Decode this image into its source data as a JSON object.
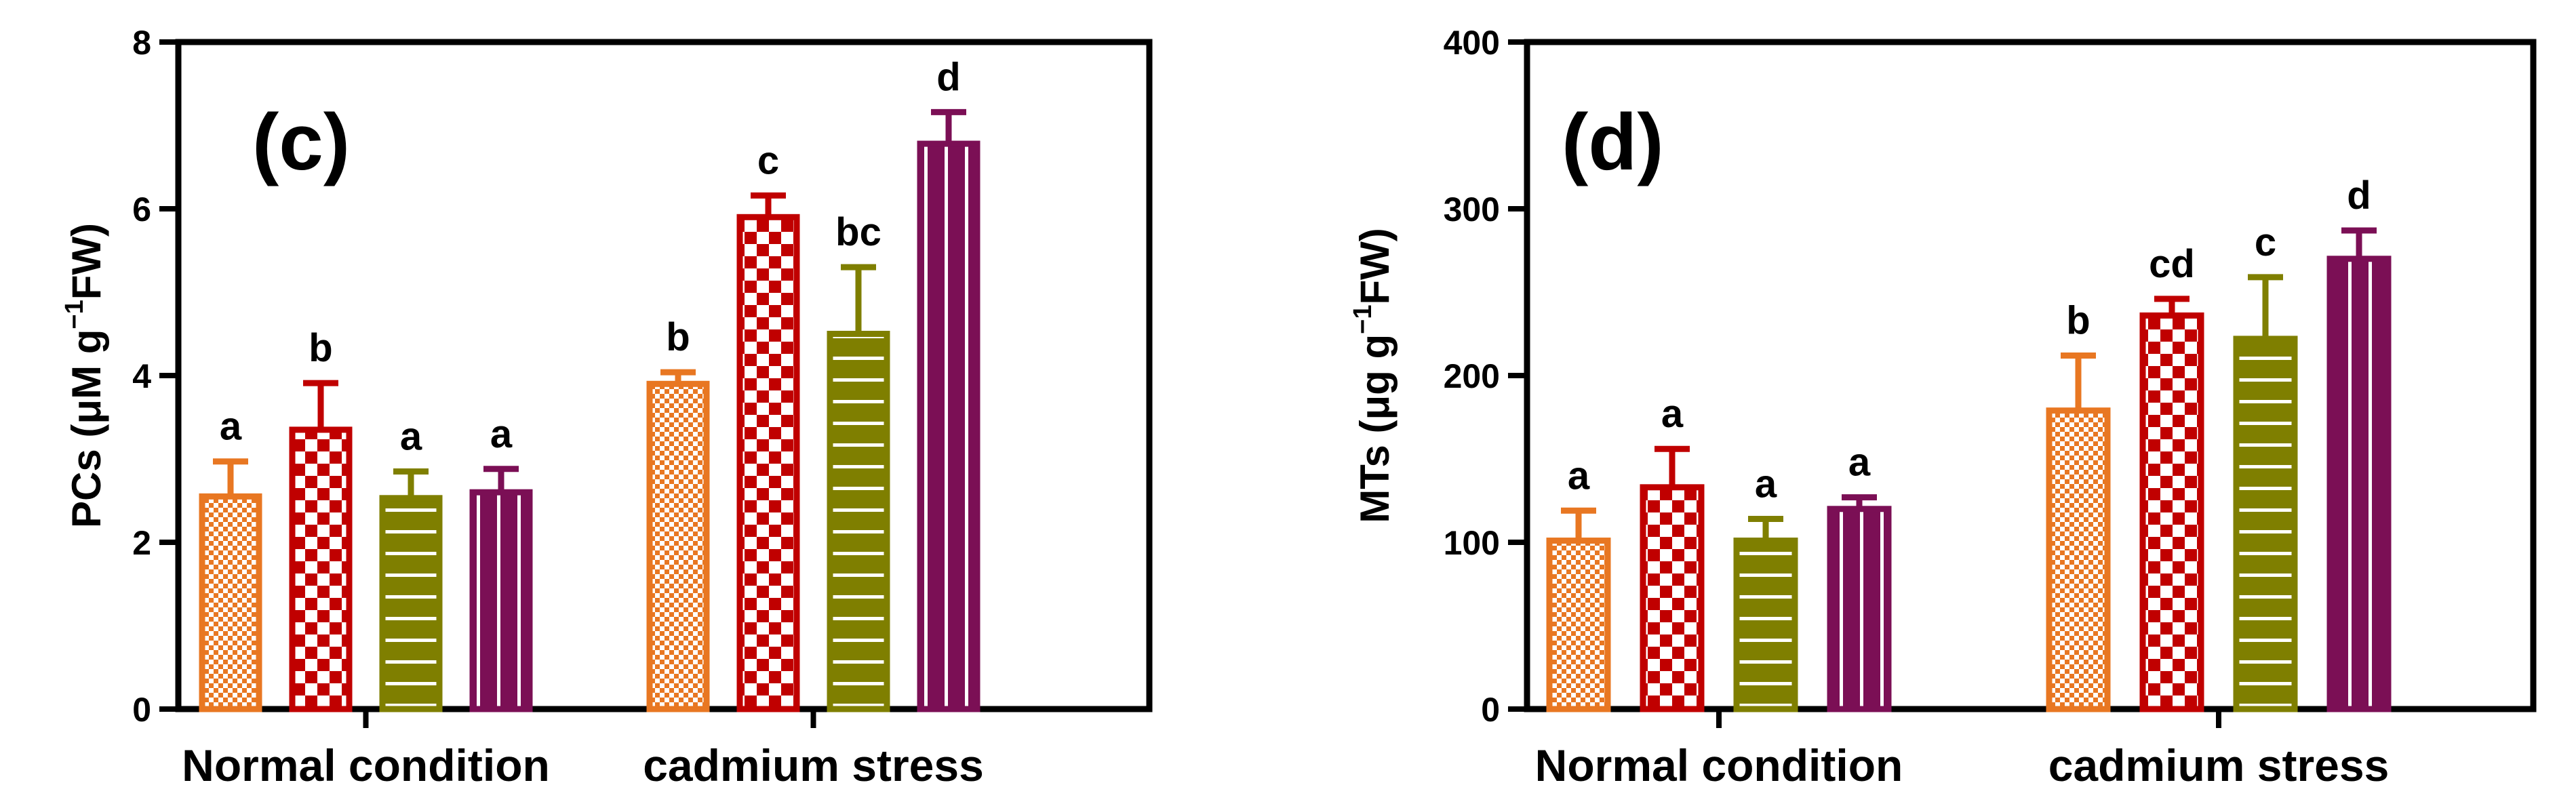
{
  "series_styles": [
    {
      "name": "series 1",
      "color": "#E87722",
      "pattern": "dots"
    },
    {
      "name": "series 2",
      "color": "#C00000",
      "pattern": "checker"
    },
    {
      "name": "series 3",
      "color": "#7F7F00",
      "pattern": "hlines"
    },
    {
      "name": "series 4",
      "color": "#7B0F55",
      "pattern": "vlines"
    }
  ],
  "chart_data": [
    {
      "type": "bar",
      "panel_label": "(c)",
      "ylabel": {
        "main": "PCs (μM g",
        "sup": "−1",
        "tail": "FW)"
      },
      "ylim": [
        0,
        8
      ],
      "yticks": [
        0,
        2,
        4,
        6,
        8
      ],
      "categories": [
        "Normal condition",
        "cadmium stress"
      ],
      "series": [
        {
          "name": "series 1",
          "values": [
            2.55,
            3.9
          ],
          "errors": [
            0.42,
            0.14
          ],
          "letters": [
            "a",
            "b"
          ]
        },
        {
          "name": "series 2",
          "values": [
            3.35,
            5.9
          ],
          "errors": [
            0.56,
            0.26
          ],
          "letters": [
            "b",
            "c"
          ]
        },
        {
          "name": "series 3",
          "values": [
            2.53,
            4.5
          ],
          "errors": [
            0.32,
            0.8
          ],
          "letters": [
            "a",
            "bc"
          ]
        },
        {
          "name": "series 4",
          "values": [
            2.6,
            6.78
          ],
          "errors": [
            0.28,
            0.38
          ],
          "letters": [
            "a",
            "d"
          ]
        }
      ]
    },
    {
      "type": "bar",
      "panel_label": "(d)",
      "ylabel": {
        "main": "MTs (μg g",
        "sup": "−1",
        "tail": "FW)"
      },
      "ylim": [
        0,
        400
      ],
      "yticks": [
        0,
        100,
        200,
        300,
        400
      ],
      "categories": [
        "Normal condition",
        "cadmium stress"
      ],
      "series": [
        {
          "name": "series 1",
          "values": [
            101,
            179
          ],
          "errors": [
            18,
            33
          ],
          "letters": [
            "a",
            "b"
          ]
        },
        {
          "name": "series 2",
          "values": [
            133,
            236
          ],
          "errors": [
            23,
            10
          ],
          "letters": [
            "a",
            "cd"
          ]
        },
        {
          "name": "series 3",
          "values": [
            101,
            222
          ],
          "errors": [
            13,
            37
          ],
          "letters": [
            "a",
            "c"
          ]
        },
        {
          "name": "series 4",
          "values": [
            120,
            270
          ],
          "errors": [
            7,
            17
          ],
          "letters": [
            "a",
            "d"
          ]
        }
      ]
    }
  ]
}
